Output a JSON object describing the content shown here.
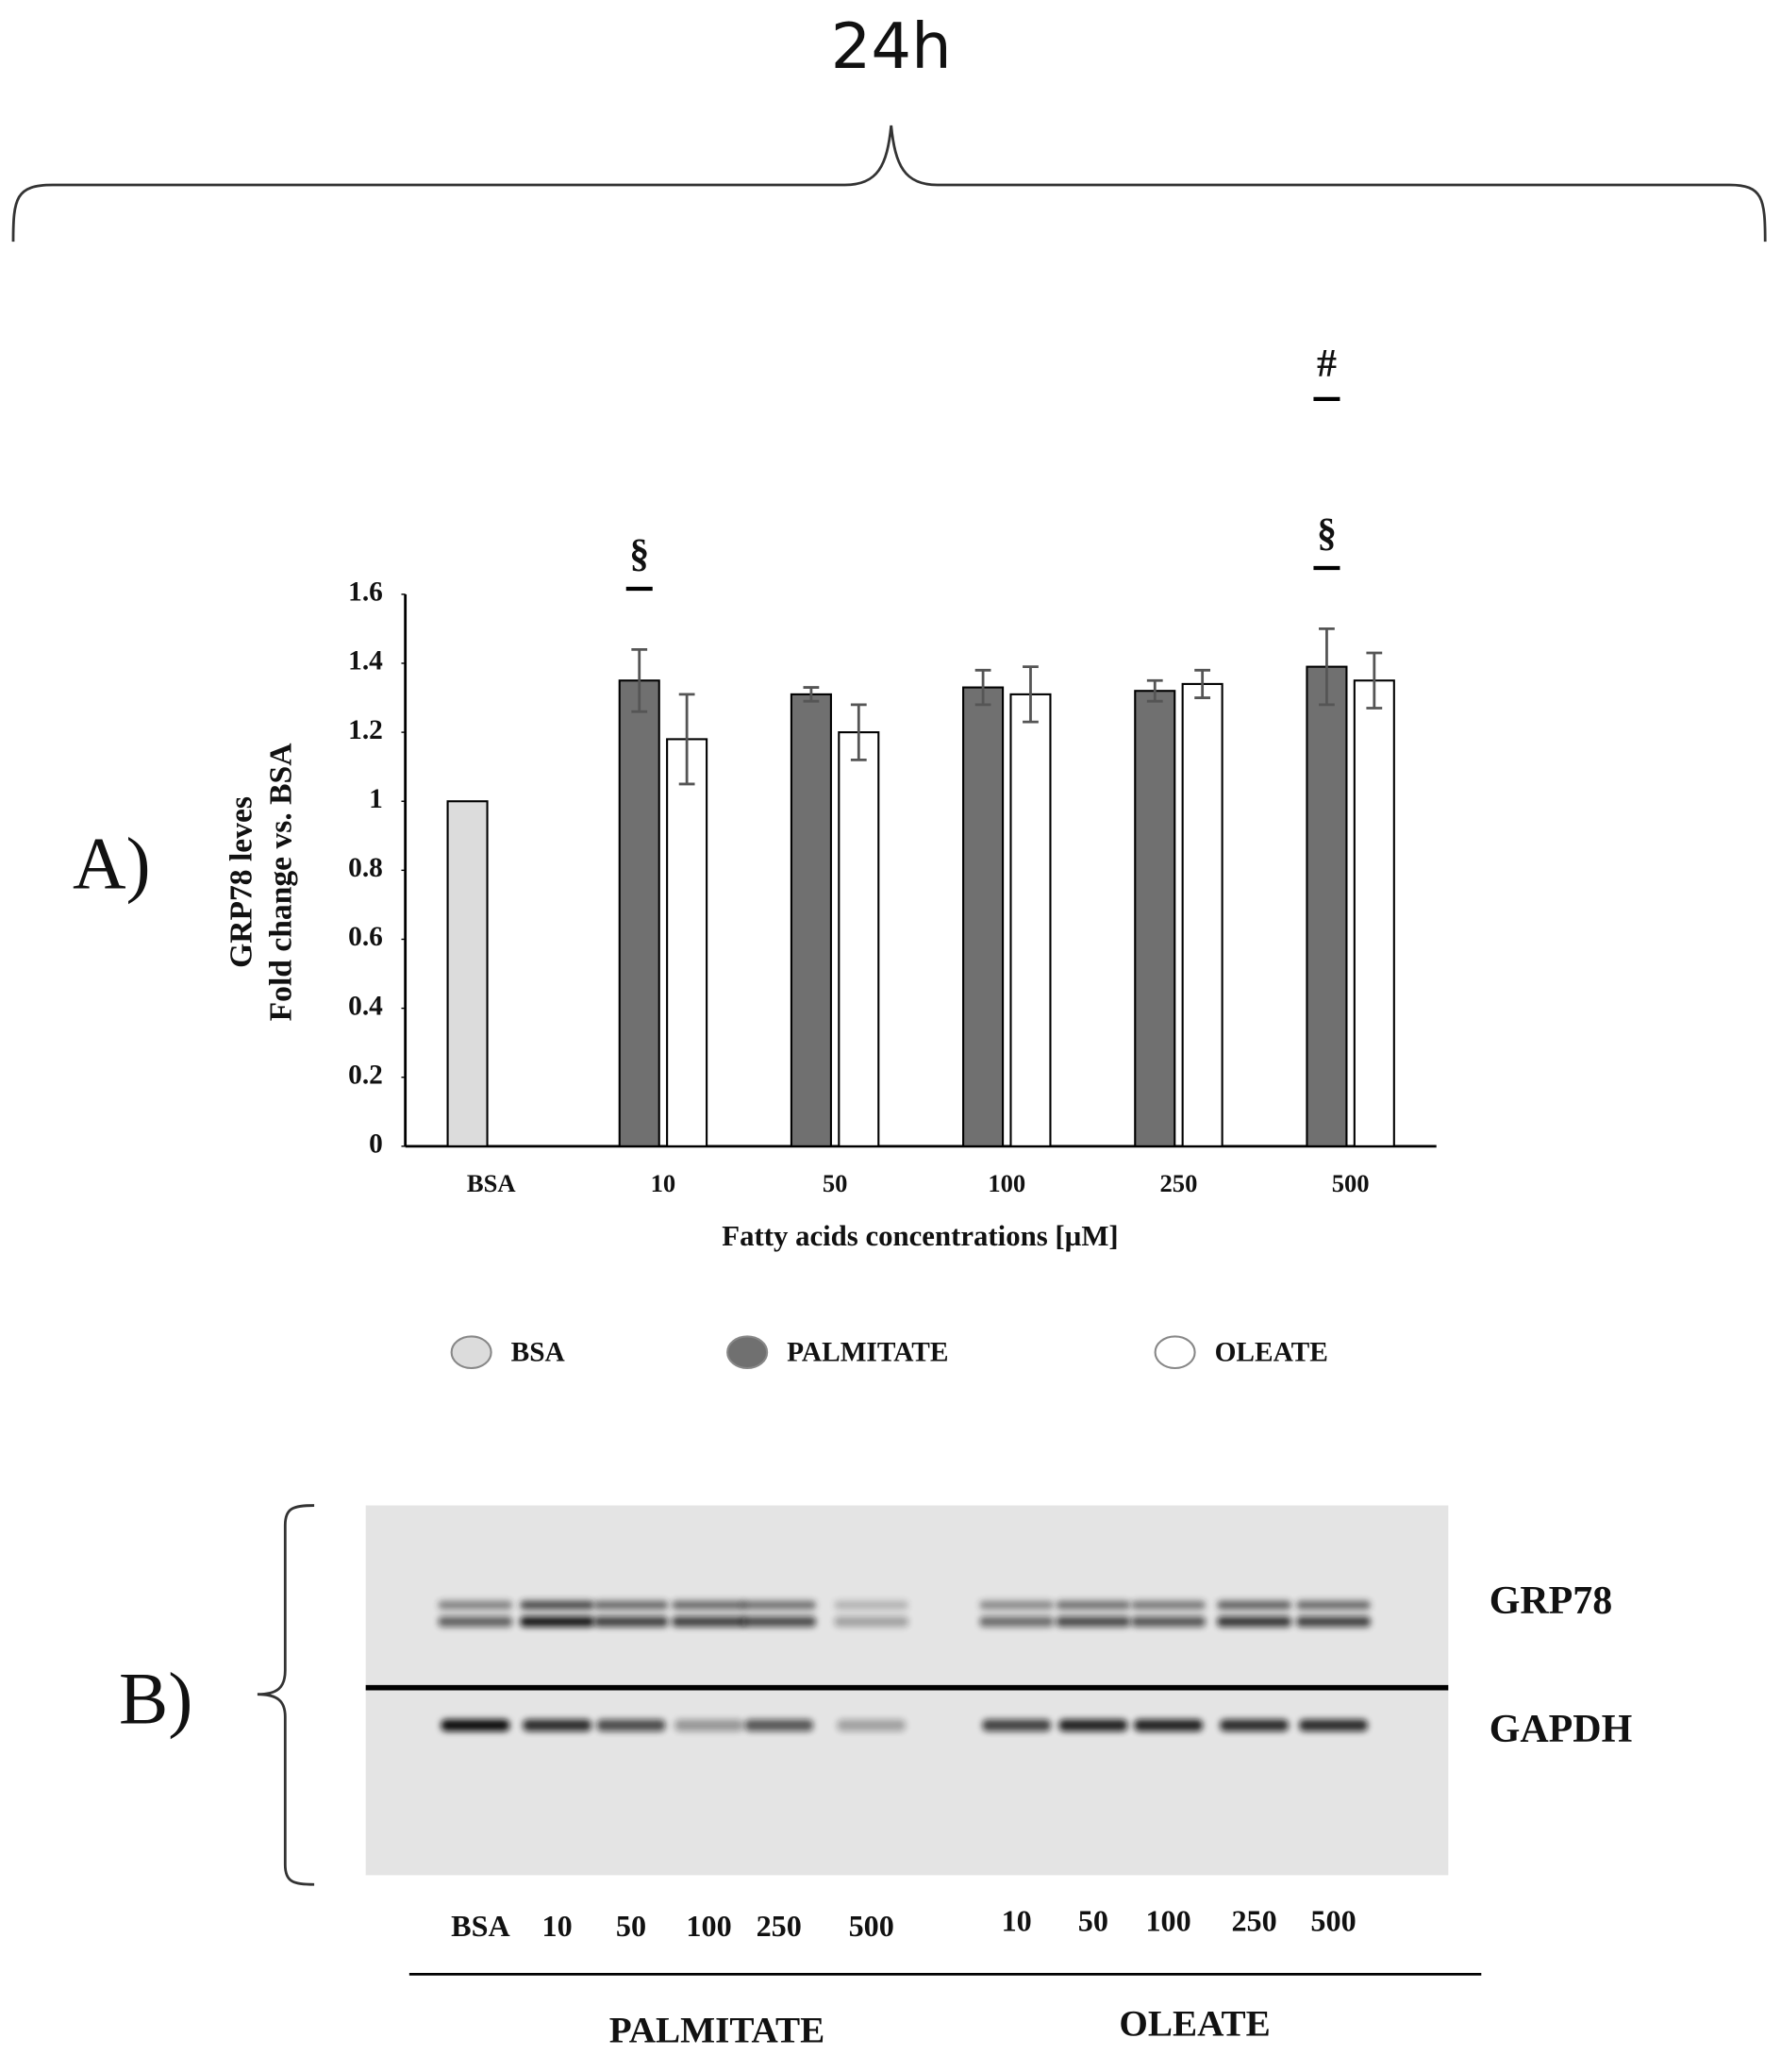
{
  "figure_title": "24h",
  "panel_labels": [
    "A)",
    "B)"
  ],
  "chart_data": {
    "type": "bar",
    "y_label": [
      "GRP78 leves",
      "Fold change vs. BSA"
    ],
    "x_label": "Fatty acids concentrations [µM]",
    "categories": [
      "BSA",
      "10",
      "50",
      "100",
      "250",
      "500"
    ],
    "series": [
      {
        "name": "BSA",
        "color": "#dcdcdc",
        "values": [
          1,
          null,
          null,
          null,
          null,
          null
        ],
        "errors": [
          null,
          null,
          null,
          null,
          null,
          null
        ]
      },
      {
        "name": "PALMITATE",
        "color": "#707070",
        "values": [
          null,
          1.35,
          1.31,
          1.33,
          1.32,
          1.39
        ],
        "errors": [
          null,
          0.09,
          0.02,
          0.05,
          0.03,
          0.11
        ]
      },
      {
        "name": "OLEATE",
        "color": "#ffffff",
        "values": [
          null,
          1.18,
          1.2,
          1.31,
          1.34,
          1.35
        ],
        "errors": [
          null,
          0.13,
          0.08,
          0.08,
          0.04,
          0.08
        ]
      }
    ],
    "ylim": [
      0,
      1.6
    ],
    "yticks": [
      0,
      0.2,
      0.4,
      0.6,
      0.8,
      1,
      1.2,
      1.4,
      1.6
    ],
    "grid": false,
    "legend": "bottom",
    "annotations": [
      {
        "text": "§",
        "category": "10",
        "series": "PALMITATE"
      },
      {
        "text": "§",
        "category": "500",
        "series": "PALMITATE"
      },
      {
        "text": "#",
        "category": "500",
        "series": "PALMITATE"
      }
    ]
  },
  "blot": {
    "proteins": [
      "GRP78",
      "GAPDH"
    ],
    "groups": [
      {
        "name": "PALMITATE",
        "lanes": [
          "BSA",
          "10",
          "50",
          "100",
          "250",
          "500"
        ]
      },
      {
        "name": "OLEATE",
        "lanes": [
          "10",
          "50",
          "100",
          "250",
          "500"
        ]
      }
    ]
  }
}
